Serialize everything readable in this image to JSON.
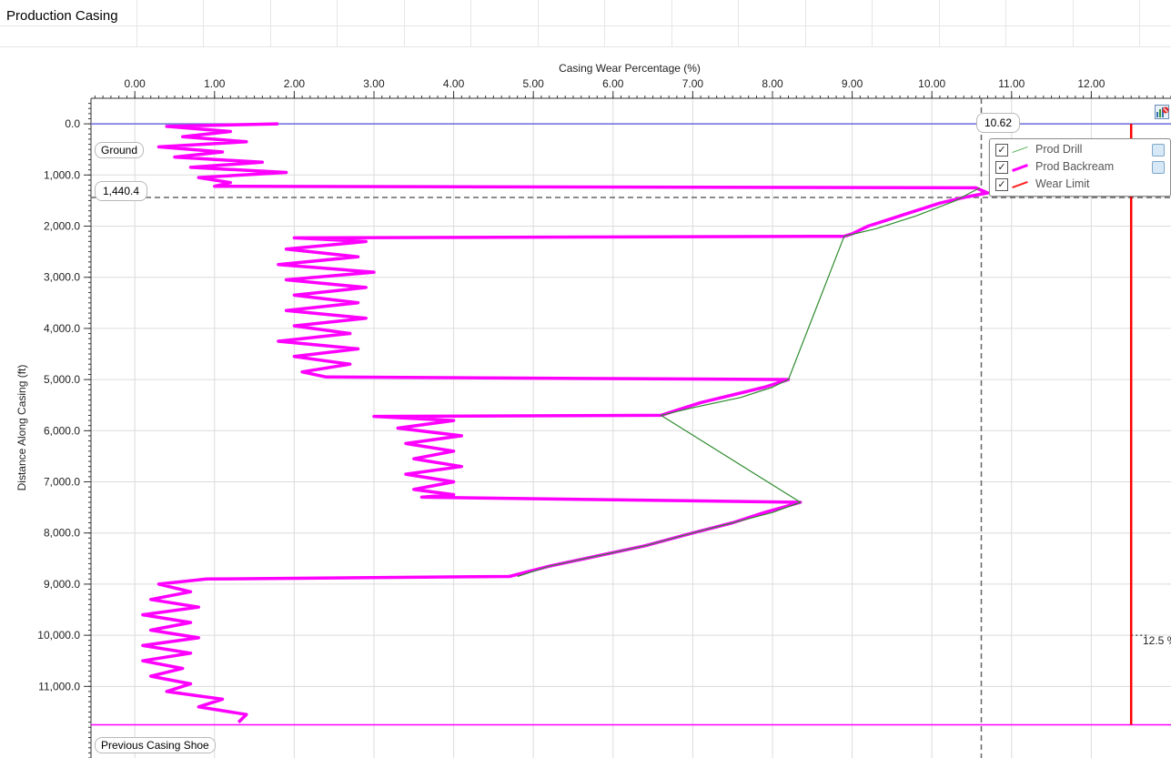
{
  "panel": {
    "title": "Production Casing"
  },
  "chart_data": {
    "type": "line",
    "orientation": "depth-down",
    "xlabel": "Casing Wear Percentage (%)",
    "ylabel": "Distance Along Casing (ft)",
    "x_axis_position": "top",
    "xlim": [
      -0.55,
      13.0
    ],
    "ylim": [
      -500,
      12400
    ],
    "x_ticks": [
      "0.00",
      "1.00",
      "2.00",
      "3.00",
      "4.00",
      "5.00",
      "6.00",
      "7.00",
      "8.00",
      "9.00",
      "10.00",
      "11.00",
      "12.00"
    ],
    "y_ticks": [
      "0.0",
      "1,000.0",
      "2,000.0",
      "3,000.0",
      "4,000.0",
      "5,000.0",
      "6,000.0",
      "7,000.0",
      "8,000.0",
      "9,000.0",
      "10,000.0",
      "11,000.0"
    ],
    "grid": true,
    "legend_placement": "top-right",
    "series": [
      {
        "name": "Prod Drill",
        "color": "#2e8b2e",
        "points": [
          [
            10.6,
            1250
          ],
          [
            10.3,
            1500
          ],
          [
            9.8,
            1800
          ],
          [
            9.3,
            2050
          ],
          [
            8.9,
            2200
          ],
          [
            8.2,
            5000
          ],
          [
            8.0,
            5150
          ],
          [
            7.6,
            5350
          ],
          [
            7.0,
            5550
          ],
          [
            6.6,
            5700
          ],
          [
            8.35,
            7400
          ],
          [
            8.0,
            7600
          ],
          [
            7.5,
            7800
          ],
          [
            7.0,
            8000
          ],
          [
            6.4,
            8250
          ],
          [
            5.8,
            8450
          ],
          [
            5.2,
            8650
          ],
          [
            4.8,
            8850
          ]
        ]
      },
      {
        "name": "Prod Backream",
        "color": "#ff00ff",
        "points": [
          [
            1.8,
            0
          ],
          [
            0.4,
            50
          ],
          [
            1.2,
            150
          ],
          [
            0.6,
            250
          ],
          [
            1.4,
            350
          ],
          [
            0.3,
            450
          ],
          [
            1.1,
            550
          ],
          [
            0.5,
            650
          ],
          [
            1.6,
            750
          ],
          [
            0.7,
            850
          ],
          [
            1.9,
            950
          ],
          [
            0.8,
            1050
          ],
          [
            1.2,
            1150
          ],
          [
            1.0,
            1220
          ],
          [
            10.55,
            1250
          ],
          [
            10.7,
            1350
          ],
          [
            10.4,
            1440
          ],
          [
            10.1,
            1550
          ],
          [
            9.8,
            1700
          ],
          [
            9.5,
            1850
          ],
          [
            9.2,
            2000
          ],
          [
            9.0,
            2150
          ],
          [
            8.9,
            2200
          ],
          [
            2.0,
            2230
          ],
          [
            2.9,
            2300
          ],
          [
            1.9,
            2450
          ],
          [
            2.8,
            2600
          ],
          [
            1.8,
            2750
          ],
          [
            3.0,
            2900
          ],
          [
            1.9,
            3050
          ],
          [
            2.9,
            3200
          ],
          [
            2.0,
            3350
          ],
          [
            2.8,
            3500
          ],
          [
            1.9,
            3650
          ],
          [
            2.9,
            3800
          ],
          [
            2.0,
            3950
          ],
          [
            2.7,
            4100
          ],
          [
            1.8,
            4250
          ],
          [
            2.8,
            4400
          ],
          [
            2.0,
            4550
          ],
          [
            2.7,
            4700
          ],
          [
            2.1,
            4850
          ],
          [
            2.4,
            4950
          ],
          [
            8.2,
            5000
          ],
          [
            7.9,
            5150
          ],
          [
            7.5,
            5300
          ],
          [
            7.1,
            5450
          ],
          [
            6.8,
            5600
          ],
          [
            6.6,
            5700
          ],
          [
            3.0,
            5720
          ],
          [
            4.0,
            5800
          ],
          [
            3.3,
            5950
          ],
          [
            4.1,
            6100
          ],
          [
            3.4,
            6250
          ],
          [
            4.0,
            6400
          ],
          [
            3.5,
            6550
          ],
          [
            4.1,
            6700
          ],
          [
            3.4,
            6850
          ],
          [
            4.0,
            7000
          ],
          [
            3.5,
            7150
          ],
          [
            4.0,
            7250
          ],
          [
            3.6,
            7300
          ],
          [
            8.35,
            7400
          ],
          [
            7.9,
            7600
          ],
          [
            7.5,
            7800
          ],
          [
            7.0,
            8000
          ],
          [
            6.4,
            8250
          ],
          [
            5.8,
            8450
          ],
          [
            5.2,
            8650
          ],
          [
            4.7,
            8850
          ],
          [
            0.9,
            8900
          ],
          [
            0.3,
            9000
          ],
          [
            0.7,
            9150
          ],
          [
            0.2,
            9300
          ],
          [
            0.8,
            9450
          ],
          [
            0.1,
            9600
          ],
          [
            0.7,
            9750
          ],
          [
            0.2,
            9900
          ],
          [
            0.8,
            10050
          ],
          [
            0.1,
            10200
          ],
          [
            0.7,
            10350
          ],
          [
            0.1,
            10500
          ],
          [
            0.6,
            10650
          ],
          [
            0.2,
            10800
          ],
          [
            0.7,
            10950
          ],
          [
            0.4,
            11100
          ],
          [
            1.1,
            11250
          ],
          [
            0.8,
            11400
          ],
          [
            1.4,
            11550
          ],
          [
            1.3,
            11700
          ]
        ]
      },
      {
        "name": "Wear Limit",
        "color": "#ff0000",
        "points": [
          [
            12.5,
            0
          ],
          [
            12.5,
            11750
          ]
        ]
      }
    ],
    "reference_lines": {
      "ground": {
        "label": "Ground",
        "depth": 0
      },
      "max_wear_depth": {
        "label": "1,440.4",
        "depth": 1440.4
      },
      "max_wear_value": {
        "label": "10.62",
        "wear": 10.62
      },
      "previous_casing_shoe": {
        "label": "Previous Casing Shoe",
        "depth": 11750
      },
      "wear_limit_label": "12.5 %"
    }
  },
  "legend": {
    "items": [
      {
        "label": "Prod Drill",
        "checked": true
      },
      {
        "label": "Prod Backream",
        "checked": true
      },
      {
        "label": "Wear Limit",
        "checked": true
      }
    ]
  },
  "icons": {
    "chart_options": "chart-options-icon"
  }
}
